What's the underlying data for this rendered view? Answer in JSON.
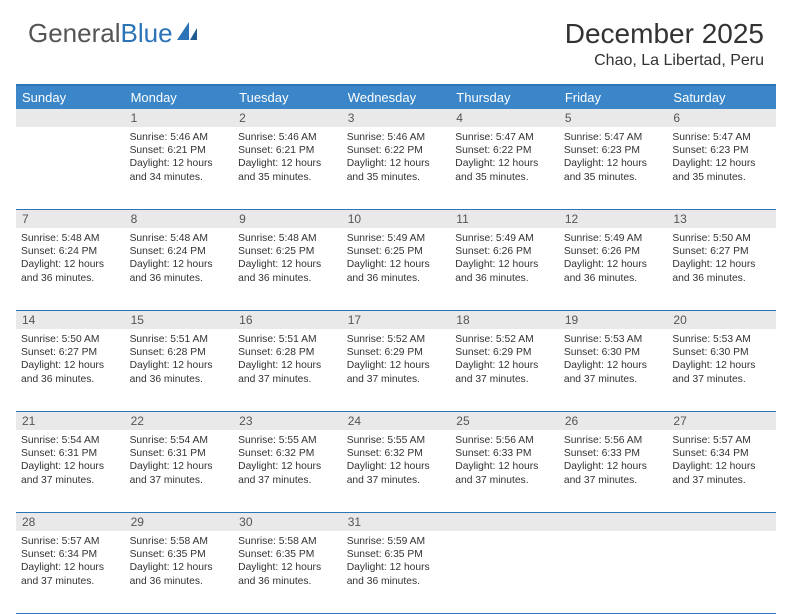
{
  "logo": {
    "text_gray": "General",
    "text_blue": "Blue"
  },
  "title": "December 2025",
  "location": "Chao, La Libertad, Peru",
  "colors": {
    "header_bg": "#3a86c8",
    "border": "#2b74b8",
    "daynum_bg": "#e9e9e9",
    "text": "#333333"
  },
  "day_names": [
    "Sunday",
    "Monday",
    "Tuesday",
    "Wednesday",
    "Thursday",
    "Friday",
    "Saturday"
  ],
  "weeks": [
    [
      null,
      {
        "n": "1",
        "sr": "5:46 AM",
        "ss": "6:21 PM",
        "dl": "12 hours and 34 minutes."
      },
      {
        "n": "2",
        "sr": "5:46 AM",
        "ss": "6:21 PM",
        "dl": "12 hours and 35 minutes."
      },
      {
        "n": "3",
        "sr": "5:46 AM",
        "ss": "6:22 PM",
        "dl": "12 hours and 35 minutes."
      },
      {
        "n": "4",
        "sr": "5:47 AM",
        "ss": "6:22 PM",
        "dl": "12 hours and 35 minutes."
      },
      {
        "n": "5",
        "sr": "5:47 AM",
        "ss": "6:23 PM",
        "dl": "12 hours and 35 minutes."
      },
      {
        "n": "6",
        "sr": "5:47 AM",
        "ss": "6:23 PM",
        "dl": "12 hours and 35 minutes."
      }
    ],
    [
      {
        "n": "7",
        "sr": "5:48 AM",
        "ss": "6:24 PM",
        "dl": "12 hours and 36 minutes."
      },
      {
        "n": "8",
        "sr": "5:48 AM",
        "ss": "6:24 PM",
        "dl": "12 hours and 36 minutes."
      },
      {
        "n": "9",
        "sr": "5:48 AM",
        "ss": "6:25 PM",
        "dl": "12 hours and 36 minutes."
      },
      {
        "n": "10",
        "sr": "5:49 AM",
        "ss": "6:25 PM",
        "dl": "12 hours and 36 minutes."
      },
      {
        "n": "11",
        "sr": "5:49 AM",
        "ss": "6:26 PM",
        "dl": "12 hours and 36 minutes."
      },
      {
        "n": "12",
        "sr": "5:49 AM",
        "ss": "6:26 PM",
        "dl": "12 hours and 36 minutes."
      },
      {
        "n": "13",
        "sr": "5:50 AM",
        "ss": "6:27 PM",
        "dl": "12 hours and 36 minutes."
      }
    ],
    [
      {
        "n": "14",
        "sr": "5:50 AM",
        "ss": "6:27 PM",
        "dl": "12 hours and 36 minutes."
      },
      {
        "n": "15",
        "sr": "5:51 AM",
        "ss": "6:28 PM",
        "dl": "12 hours and 36 minutes."
      },
      {
        "n": "16",
        "sr": "5:51 AM",
        "ss": "6:28 PM",
        "dl": "12 hours and 37 minutes."
      },
      {
        "n": "17",
        "sr": "5:52 AM",
        "ss": "6:29 PM",
        "dl": "12 hours and 37 minutes."
      },
      {
        "n": "18",
        "sr": "5:52 AM",
        "ss": "6:29 PM",
        "dl": "12 hours and 37 minutes."
      },
      {
        "n": "19",
        "sr": "5:53 AM",
        "ss": "6:30 PM",
        "dl": "12 hours and 37 minutes."
      },
      {
        "n": "20",
        "sr": "5:53 AM",
        "ss": "6:30 PM",
        "dl": "12 hours and 37 minutes."
      }
    ],
    [
      {
        "n": "21",
        "sr": "5:54 AM",
        "ss": "6:31 PM",
        "dl": "12 hours and 37 minutes."
      },
      {
        "n": "22",
        "sr": "5:54 AM",
        "ss": "6:31 PM",
        "dl": "12 hours and 37 minutes."
      },
      {
        "n": "23",
        "sr": "5:55 AM",
        "ss": "6:32 PM",
        "dl": "12 hours and 37 minutes."
      },
      {
        "n": "24",
        "sr": "5:55 AM",
        "ss": "6:32 PM",
        "dl": "12 hours and 37 minutes."
      },
      {
        "n": "25",
        "sr": "5:56 AM",
        "ss": "6:33 PM",
        "dl": "12 hours and 37 minutes."
      },
      {
        "n": "26",
        "sr": "5:56 AM",
        "ss": "6:33 PM",
        "dl": "12 hours and 37 minutes."
      },
      {
        "n": "27",
        "sr": "5:57 AM",
        "ss": "6:34 PM",
        "dl": "12 hours and 37 minutes."
      }
    ],
    [
      {
        "n": "28",
        "sr": "5:57 AM",
        "ss": "6:34 PM",
        "dl": "12 hours and 37 minutes."
      },
      {
        "n": "29",
        "sr": "5:58 AM",
        "ss": "6:35 PM",
        "dl": "12 hours and 36 minutes."
      },
      {
        "n": "30",
        "sr": "5:58 AM",
        "ss": "6:35 PM",
        "dl": "12 hours and 36 minutes."
      },
      {
        "n": "31",
        "sr": "5:59 AM",
        "ss": "6:35 PM",
        "dl": "12 hours and 36 minutes."
      },
      null,
      null,
      null
    ]
  ],
  "labels": {
    "sunrise": "Sunrise:",
    "sunset": "Sunset:",
    "daylight": "Daylight:"
  }
}
